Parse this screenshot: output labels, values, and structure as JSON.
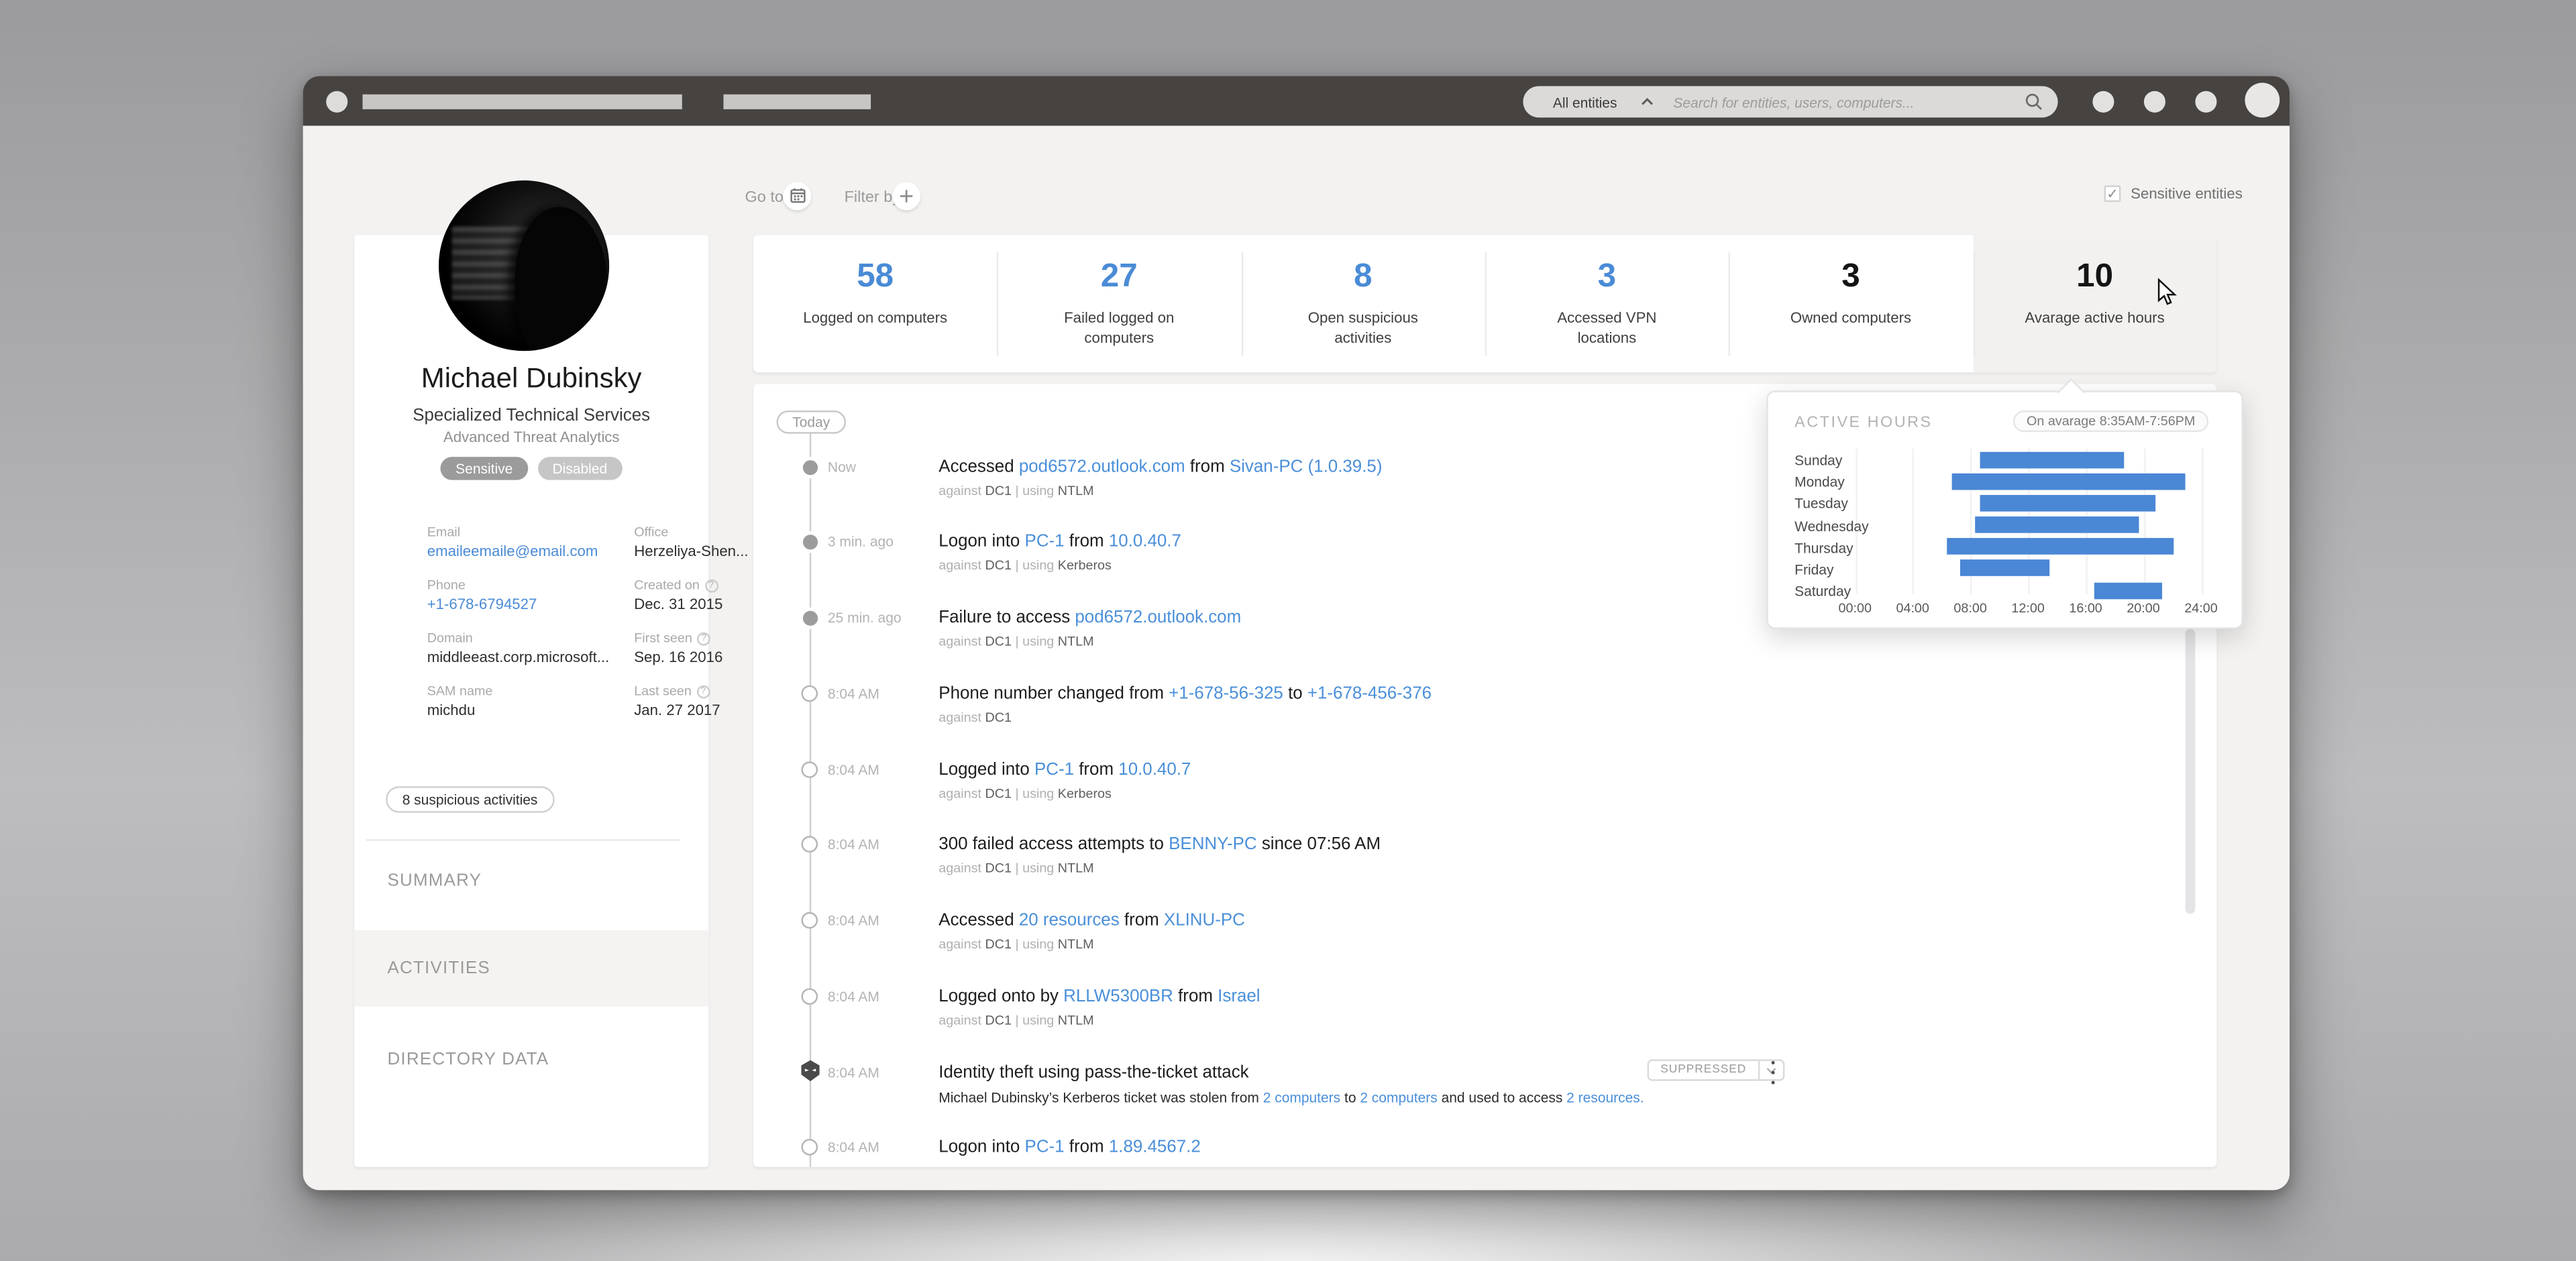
{
  "colors": {
    "accent_blue": "#4a8bd6",
    "bar_blue": "#4a87d5",
    "titlebar": "#474340",
    "app_bg": "#f3f2f1"
  },
  "window_chrome": {
    "search_scope": "All entities",
    "search_placeholder": "Search for entities, users, computers..."
  },
  "toolbar": {
    "goto_label": "Go to:",
    "filter_label": "Filter by:",
    "sensitive_entities_label": "Sensitive entities",
    "sensitive_checked": true,
    "checkmark": "✓"
  },
  "profile": {
    "name": "Michael Dubinsky",
    "title": "Specialized Technical Services",
    "subtitle": "Advanced Threat Analytics",
    "badges": [
      {
        "label": "Sensitive"
      },
      {
        "label": "Disabled"
      }
    ],
    "fields": [
      {
        "label": "Email",
        "value": "emaileemaile@email.com",
        "link": true
      },
      {
        "label": "Office",
        "value": "Herzeliya-Shen..."
      },
      {
        "label": "Phone",
        "value": "+1-678-6794527",
        "link": true
      },
      {
        "label": "Created on",
        "value": "Dec. 31 2015",
        "help": true
      },
      {
        "label": "Domain",
        "value": "middleeast.corp.microsoft..."
      },
      {
        "label": "First seen",
        "value": "Sep. 16 2016",
        "help": true
      },
      {
        "label": "SAM name",
        "value": "michdu"
      },
      {
        "label": "Last seen",
        "value": "Jan. 27 2017",
        "help": true
      }
    ],
    "suspicious_button": "8 suspicious activities",
    "menu": [
      {
        "label": "SUMMARY",
        "active": false
      },
      {
        "label": "ACTIVITIES",
        "active": true
      },
      {
        "label": "DIRECTORY DATA",
        "active": false
      }
    ]
  },
  "stats": [
    {
      "value": "58",
      "label": "Logged on computers",
      "color": "blue"
    },
    {
      "value": "27",
      "label": "Failed logged on computers",
      "color": "blue"
    },
    {
      "value": "8",
      "label": "Open suspicious activities",
      "color": "blue"
    },
    {
      "value": "3",
      "label": "Accessed VPN locations",
      "color": "blue"
    },
    {
      "value": "3",
      "label": "Owned computers",
      "color": "dark"
    },
    {
      "value": "10",
      "label": "Avarage active hours",
      "color": "dark",
      "active": true
    }
  ],
  "timeline": {
    "today_label": "Today",
    "entries": [
      {
        "time": "Now",
        "marker": "filled",
        "title": [
          {
            "t": "Accessed "
          },
          {
            "t": "pod6572.outlook.com",
            "link": true
          },
          {
            "t": " from "
          },
          {
            "t": "Sivan-PC (1.0.39.5)",
            "link": true
          }
        ],
        "meta": [
          {
            "t": "against ",
            "muted": true
          },
          {
            "t": "DC1"
          },
          {
            "t": " | using ",
            "muted": true
          },
          {
            "t": "NTLM"
          }
        ]
      },
      {
        "time": "3 min. ago",
        "marker": "filled",
        "title": [
          {
            "t": "Logon into "
          },
          {
            "t": "PC-1",
            "link": true
          },
          {
            "t": " from "
          },
          {
            "t": "10.0.40.7",
            "link": true
          }
        ],
        "meta": [
          {
            "t": "against ",
            "muted": true
          },
          {
            "t": "DC1"
          },
          {
            "t": " | using ",
            "muted": true
          },
          {
            "t": "Kerberos"
          }
        ]
      },
      {
        "time": "25 min. ago",
        "marker": "filled",
        "title": [
          {
            "t": "Failure to access "
          },
          {
            "t": "pod6572.outlook.com",
            "link": true
          }
        ],
        "meta": [
          {
            "t": "against ",
            "muted": true
          },
          {
            "t": "DC1"
          },
          {
            "t": " | using ",
            "muted": true
          },
          {
            "t": "NTLM"
          }
        ]
      },
      {
        "time": "8:04 AM",
        "marker": "hollow",
        "title": [
          {
            "t": "Phone number changed from "
          },
          {
            "t": "+1-678-56-325",
            "link": true
          },
          {
            "t": " to "
          },
          {
            "t": "+1-678-456-376",
            "link": true
          }
        ],
        "meta": [
          {
            "t": "against ",
            "muted": true
          },
          {
            "t": "DC1"
          }
        ]
      },
      {
        "time": "8:04 AM",
        "marker": "hollow",
        "title": [
          {
            "t": "Logged into "
          },
          {
            "t": "PC-1",
            "link": true
          },
          {
            "t": " from "
          },
          {
            "t": "10.0.40.7",
            "link": true
          }
        ],
        "meta": [
          {
            "t": "against ",
            "muted": true
          },
          {
            "t": "DC1"
          },
          {
            "t": " | using ",
            "muted": true
          },
          {
            "t": "Kerberos"
          }
        ]
      },
      {
        "time": "8:04 AM",
        "marker": "hollow",
        "title": [
          {
            "t": "300 failed access attempts to "
          },
          {
            "t": "BENNY-PC",
            "link": true
          },
          {
            "t": " since 07:56 AM"
          }
        ],
        "meta": [
          {
            "t": "against ",
            "muted": true
          },
          {
            "t": "DC1"
          },
          {
            "t": " | using ",
            "muted": true
          },
          {
            "t": "NTLM"
          }
        ]
      },
      {
        "time": "8:04 AM",
        "marker": "hollow",
        "title": [
          {
            "t": "Accessed "
          },
          {
            "t": "20 resources",
            "link": true
          },
          {
            "t": " from "
          },
          {
            "t": "XLINU-PC",
            "link": true
          }
        ],
        "meta": [
          {
            "t": "against ",
            "muted": true
          },
          {
            "t": "DC1"
          },
          {
            "t": " | using ",
            "muted": true
          },
          {
            "t": "NTLM"
          }
        ]
      },
      {
        "time": "8:04 AM",
        "marker": "hollow",
        "title": [
          {
            "t": "Logged onto by "
          },
          {
            "t": "RLLW5300BR",
            "link": true
          },
          {
            "t": " from "
          },
          {
            "t": "Israel",
            "link": true
          }
        ],
        "meta": [
          {
            "t": "against ",
            "muted": true
          },
          {
            "t": "DC1"
          },
          {
            "t": " | using ",
            "muted": true
          },
          {
            "t": "NTLM"
          }
        ]
      },
      {
        "time": "8:04 AM",
        "marker": "threat",
        "title": [
          {
            "t": "Identity theft using pass-the-ticket attack"
          }
        ],
        "desc": [
          {
            "t": "Michael Dubinsky’s Kerberos ticket was stolen from "
          },
          {
            "t": "2 computers",
            "link": true
          },
          {
            "t": " to "
          },
          {
            "t": "2 computers",
            "link": true
          },
          {
            "t": " and used to access "
          },
          {
            "t": "2 resources.",
            "link": true
          }
        ],
        "suppressed_label": "SUPPRESSED",
        "has_menu": true
      },
      {
        "time": "8:04 AM",
        "marker": "hollow",
        "title": [
          {
            "t": "Logon into "
          },
          {
            "t": "PC-1",
            "link": true
          },
          {
            "t": " from "
          },
          {
            "t": "1.89.4567.2",
            "link": true
          }
        ]
      }
    ]
  },
  "active_hours_popup": {
    "title": "ACTIVE HOURS",
    "average_badge": "On avarage 8:35AM-7:56PM"
  },
  "chart_data": {
    "type": "bar",
    "orientation": "horizontal-range",
    "title": "ACTIVE HOURS",
    "annotation": "On avarage 8:35AM-7:56PM",
    "categories": [
      "Sunday",
      "Monday",
      "Tuesday",
      "Wednesday",
      "Thursday",
      "Friday",
      "Saturday"
    ],
    "series": [
      {
        "name": "Active hours range (start/end, 24h)",
        "values": [
          [
            8.7,
            18.7
          ],
          [
            6.75,
            22.9
          ],
          [
            8.7,
            20.9
          ],
          [
            8.3,
            19.7
          ],
          [
            6.4,
            22.1
          ],
          [
            7.25,
            13.5
          ],
          [
            16.55,
            21.25
          ]
        ]
      }
    ],
    "x_ticks": [
      "00:00",
      "04:00",
      "08:00",
      "12:00",
      "16:00",
      "20:00",
      "24:00"
    ],
    "xlim": [
      0,
      24
    ],
    "grid": true,
    "bar_color": "#4a87d5"
  }
}
